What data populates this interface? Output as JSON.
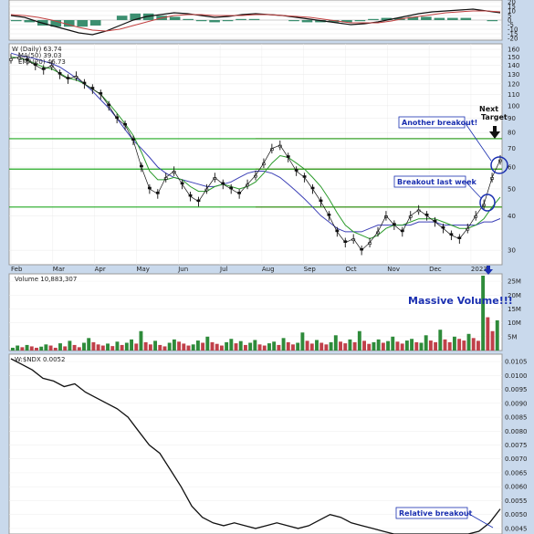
{
  "chart_data": [
    {
      "type": "line",
      "panel": "macd",
      "ylim": [
        -20,
        20
      ],
      "y_ticks": [
        20,
        15,
        10,
        5,
        0,
        -5,
        -10,
        -15,
        -20
      ],
      "series": [
        {
          "values": [
            5,
            3,
            -2,
            -6,
            -10,
            -14,
            -16,
            -12,
            -6,
            0,
            4,
            6,
            8,
            7,
            5,
            3,
            4,
            6,
            7,
            6,
            5,
            3,
            1,
            -1,
            -3,
            -5,
            -4,
            -2,
            1,
            4,
            7,
            9,
            10,
            11,
            12,
            10,
            8
          ]
        },
        {
          "values": [
            6,
            5,
            3,
            0,
            -4,
            -8,
            -11,
            -12,
            -10,
            -6,
            -2,
            2,
            5,
            6,
            6,
            5,
            5,
            5,
            6,
            6,
            5,
            4,
            3,
            1,
            -1,
            -3,
            -3,
            -3,
            -1,
            2,
            4,
            6,
            8,
            9,
            10,
            10,
            9
          ]
        }
      ]
    },
    {
      "type": "line",
      "panel": "price",
      "legend": [
        {
          "name": "W (Daily) 63.74",
          "color": "#111111"
        },
        {
          "name": "MA(50) 39.03",
          "color": "#3b3fb6"
        },
        {
          "name": "EMA(20) 46.73",
          "color": "#2a9a2a"
        }
      ],
      "y_scale": "log",
      "ylim": [
        27,
        165
      ],
      "y_ticks": [
        160,
        150,
        140,
        130,
        120,
        110,
        100,
        90,
        80,
        70,
        60,
        50,
        40,
        30
      ],
      "x_ticks": [
        "Feb",
        "Mar",
        "Apr",
        "May",
        "Jun",
        "Jul",
        "Aug",
        "Sep",
        "Oct",
        "Nov",
        "Dec",
        "2023"
      ],
      "horizontal_lines": [
        {
          "y": 76,
          "color": "#e03030"
        },
        {
          "y": 59,
          "color": "#e03030"
        },
        {
          "y": 43,
          "color": "#e03030"
        },
        {
          "y": 76,
          "color": "#22aa22"
        },
        {
          "y": 59,
          "color": "#22aa22"
        },
        {
          "y": 43,
          "color": "#22aa22"
        }
      ],
      "series": [
        {
          "color": "#111111",
          "values": [
            148,
            150,
            146,
            140,
            135,
            140,
            130,
            125,
            128,
            120,
            115,
            110,
            100,
            90,
            85,
            75,
            60,
            50,
            48,
            55,
            58,
            52,
            47,
            45,
            50,
            55,
            52,
            50,
            48,
            52,
            56,
            62,
            70,
            72,
            65,
            58,
            55,
            50,
            45,
            40,
            35,
            32,
            33,
            30,
            32,
            35,
            40,
            37,
            35,
            40,
            42,
            40,
            38,
            36,
            34,
            33,
            36,
            40,
            44,
            55,
            63.74
          ]
        },
        {
          "color": "#3b3fb6",
          "values": [
            155,
            152,
            150,
            148,
            145,
            142,
            138,
            132,
            126,
            120,
            113,
            105,
            98,
            90,
            82,
            75,
            70,
            65,
            60,
            57,
            55,
            54,
            53,
            52,
            51,
            51,
            52,
            53,
            55,
            57,
            58,
            58,
            57,
            55,
            52,
            49,
            46,
            43,
            40,
            38,
            36,
            35,
            35,
            35,
            36,
            37,
            37,
            37,
            37,
            37,
            38,
            38,
            38,
            37,
            37,
            37,
            37,
            37,
            38,
            38,
            39.03
          ]
        },
        {
          "color": "#2a9a2a",
          "values": [
            150,
            149,
            146,
            142,
            138,
            136,
            131,
            126,
            124,
            120,
            115,
            110,
            102,
            94,
            86,
            78,
            68,
            58,
            54,
            54,
            55,
            54,
            51,
            49,
            49,
            51,
            52,
            51,
            50,
            51,
            53,
            57,
            62,
            66,
            65,
            62,
            59,
            55,
            51,
            46,
            41,
            37,
            35,
            34,
            33,
            34,
            36,
            37,
            37,
            38,
            39,
            39,
            39,
            38,
            37,
            36,
            36,
            37,
            39,
            43,
            46.73
          ]
        }
      ]
    },
    {
      "type": "bar",
      "panel": "volume",
      "legend": [
        {
          "name": "Volume 10,883,307"
        }
      ],
      "ylim": [
        0,
        27
      ],
      "y_tick_labels": [
        "25M",
        "20M",
        "15M",
        "10M",
        "5M"
      ],
      "values": [
        1.0,
        1.8,
        1.2,
        2.0,
        1.5,
        1.0,
        1.4,
        2.2,
        1.8,
        1.0,
        2.6,
        1.5,
        3.5,
        2.0,
        1.2,
        2.8,
        4.5,
        3.0,
        2.2,
        1.8,
        2.5,
        1.6,
        3.2,
        2.0,
        2.8,
        4.0,
        2.5,
        7.0,
        3.0,
        2.2,
        3.5,
        2.0,
        1.5,
        2.8,
        4.0,
        3.2,
        2.5,
        1.8,
        2.2,
        3.6,
        2.8,
        5.0,
        3.0,
        2.4,
        1.8,
        3.0,
        4.2,
        2.6,
        3.4,
        2.0,
        2.8,
        3.8,
        2.2,
        1.8,
        2.6,
        3.2,
        2.0,
        4.5,
        3.0,
        2.2,
        2.8,
        6.5,
        3.5,
        2.5,
        3.8,
        2.8,
        2.2,
        3.0,
        5.5,
        3.2,
        2.6,
        4.0,
        3.0,
        7.0,
        3.5,
        2.4,
        3.0,
        4.0,
        2.8,
        3.4,
        5.0,
        3.2,
        2.5,
        3.6,
        4.2,
        3.0,
        2.8,
        5.5,
        3.6,
        3.0,
        7.5,
        4.0,
        3.0,
        5.0,
        4.2,
        3.6,
        6.0,
        4.5,
        3.5,
        27.0,
        12.0,
        7.0,
        10.9
      ]
    },
    {
      "type": "line",
      "panel": "ratio",
      "legend": [
        {
          "name": "W:$NDX 0.0052"
        }
      ],
      "ylim": [
        0.0043,
        0.0107
      ],
      "y_ticks": [
        "0.0105",
        "0.0100",
        "0.0095",
        "0.0090",
        "0.0085",
        "0.0080",
        "0.0075",
        "0.0070",
        "0.0065",
        "0.0060",
        "0.0055",
        "0.0050",
        "0.0045"
      ],
      "series": [
        {
          "color": "#111111",
          "values": [
            0.0106,
            0.0104,
            0.0102,
            0.0099,
            0.0098,
            0.0096,
            0.0097,
            0.0094,
            0.0092,
            0.009,
            0.0088,
            0.0085,
            0.008,
            0.0075,
            0.0072,
            0.0066,
            0.006,
            0.0053,
            0.0049,
            0.0047,
            0.0046,
            0.0047,
            0.0046,
            0.0045,
            0.0046,
            0.0047,
            0.0046,
            0.0045,
            0.0046,
            0.0048,
            0.005,
            0.0049,
            0.0047,
            0.0046,
            0.0045,
            0.0044,
            0.0043,
            0.0043,
            0.0043,
            0.0043,
            0.0043,
            0.0043,
            0.0043,
            0.0043,
            0.0044,
            0.0047,
            0.0052
          ]
        }
      ]
    }
  ],
  "annotations": {
    "next_target": "Next Target",
    "another_breakout": "Another breakout!",
    "breakout_last_week": "Breakout last week",
    "massive_volume": "Massive Volume!!!",
    "relative_breakout": "Relative breakout"
  },
  "colors": {
    "background": "#c9d9ec",
    "panel_bg": "#ffffff",
    "price_line": "#111111",
    "ma50": "#3b3fb6",
    "ema20": "#2a9a2a",
    "resistance_red": "#e03030",
    "support_green": "#22aa22",
    "volume_up": "#2e8b3a",
    "volume_down": "#c0404a",
    "annotation_blue": "#1a2fb0"
  }
}
